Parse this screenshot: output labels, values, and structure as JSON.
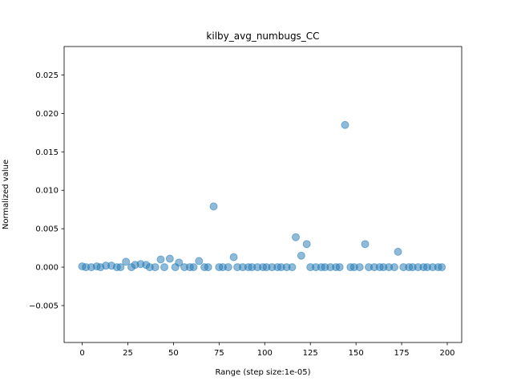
{
  "chart_data": {
    "type": "scatter",
    "title": "kilby_avg_numbugs_CC",
    "xlabel": "Range (step size:1e-05)",
    "ylabel": "Normalized value",
    "xlim": [
      -9.9,
      207.9
    ],
    "ylim": [
      -0.0098,
      0.0287
    ],
    "xticks": [
      0,
      25,
      50,
      75,
      100,
      125,
      150,
      175,
      200
    ],
    "yticks": [
      -0.005,
      0.0,
      0.005,
      0.01,
      0.015,
      0.02,
      0.025
    ],
    "xtick_labels": [
      "0",
      "25",
      "50",
      "75",
      "100",
      "125",
      "150",
      "175",
      "200"
    ],
    "ytick_labels": [
      "−0.005",
      "0.000",
      "0.005",
      "0.010",
      "0.015",
      "0.020",
      "0.025"
    ],
    "grid": false,
    "marker_color": "#1f77b4",
    "marker_alpha": 0.5,
    "x": [
      0,
      2,
      5,
      8,
      10,
      13,
      16,
      19,
      21,
      24,
      27,
      29,
      32,
      35,
      37,
      40,
      43,
      45,
      48,
      51,
      53,
      56,
      59,
      61,
      64,
      67,
      69,
      72,
      75,
      77,
      80,
      83,
      85,
      88,
      91,
      93,
      96,
      99,
      101,
      104,
      107,
      109,
      112,
      115,
      117,
      120,
      123,
      125,
      128,
      131,
      133,
      136,
      139,
      141,
      144,
      147,
      149,
      152,
      155,
      157,
      160,
      163,
      165,
      168,
      171,
      173,
      176,
      179,
      181,
      184,
      187,
      189,
      192,
      195,
      197
    ],
    "y": [
      0.0001,
      0.0,
      0.0,
      0.0001,
      0.0,
      0.0002,
      0.0002,
      0.0,
      0.0,
      0.0007,
      0.0,
      0.0003,
      0.0004,
      0.0003,
      0.0,
      0.0,
      0.001,
      0.0,
      0.0011,
      0.0,
      0.0006,
      0.0,
      0.0,
      0.0,
      0.0008,
      0.0,
      0.0,
      0.0079,
      0.0,
      0.0,
      0.0,
      0.0013,
      0.0,
      0.0,
      0.0,
      0.0,
      0.0,
      0.0,
      0.0,
      0.0,
      0.0,
      0.0,
      0.0,
      0.0,
      0.0039,
      0.0015,
      0.003,
      0.0,
      0.0,
      0.0,
      0.0,
      0.0,
      0.0,
      0.0,
      0.0185,
      0.0,
      0.0,
      0.0,
      0.003,
      0.0,
      0.0,
      0.0,
      0.0,
      0.0,
      0.0,
      0.002,
      0.0,
      0.0,
      0.0,
      0.0,
      0.0,
      0.0,
      0.0,
      0.0,
      0.0
    ]
  }
}
